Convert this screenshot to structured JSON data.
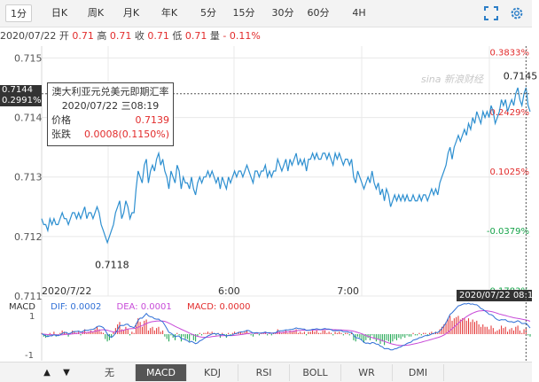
{
  "tabs": [
    "1分",
    "日K",
    "周K",
    "月K",
    "年K",
    "5分",
    "15分",
    "30分",
    "60分",
    "4H"
  ],
  "active_tab": 0,
  "quote": {
    "date": "2020/07/22",
    "open_label": "开",
    "open": "0.71",
    "high_label": "高",
    "high": "0.71",
    "close_label": "收",
    "close": "0.71",
    "low_label": "低",
    "low": "0.71",
    "volume_label": "量",
    "change": "- 0.11%"
  },
  "watermark": "sina 新浪财经",
  "tooltip": {
    "title": "澳大利亚元兑美元即期汇率",
    "time": "2020/07/22|三08:19",
    "price_label": "价格",
    "price": "0.7139",
    "change_label": "张跌",
    "change": "0.0008(0.1150%)"
  },
  "crosshair": {
    "price": "0.7144",
    "pct": "0.2991%",
    "time": "2020/07/22 08:19"
  },
  "macd": {
    "label": "MACD",
    "dif": "DIF: 0.0002",
    "dea": "DEA: 0.0001",
    "macd": "MACD: 0.0000"
  },
  "indicators": [
    "无",
    "MACD",
    "KDJ",
    "RSI",
    "BOLL",
    "WR",
    "DMI"
  ],
  "active_indicator": 1,
  "colors": {
    "line": "#2d8fd0",
    "up": "#e22c2c",
    "down": "#16a34a",
    "dif": "#2f6fd6",
    "dea": "#c74ad8"
  },
  "chart_data": {
    "type": "line",
    "ylim": [
      0.711,
      0.7152
    ],
    "y_ticks": [
      "0.715",
      "0.714",
      "0.713",
      "0.712",
      "0.711"
    ],
    "y_tick_values": [
      0.715,
      0.714,
      0.713,
      0.712,
      0.711
    ],
    "pct_ticks": [
      "0.3833%",
      "0.2429%",
      "0.1025%",
      "-0.0379%",
      "-0.1783%"
    ],
    "pct_tick_values": [
      0.7151,
      0.7141,
      0.7131,
      0.7121,
      0.7111
    ],
    "x_ticks": [
      "2020/7/22",
      "6:00",
      "7:00"
    ],
    "x_tick_index": [
      0,
      92,
      150
    ],
    "annotations": [
      {
        "text": "0.7145",
        "index": 231,
        "value": 0.71455
      },
      {
        "text": "0.7118",
        "index": 32,
        "value": 0.7118
      }
    ],
    "values": [
      0.7123,
      0.7122,
      0.7122,
      0.7121,
      0.7123,
      0.7122,
      0.7123,
      0.7122,
      0.7122,
      0.7123,
      0.7124,
      0.7123,
      0.7123,
      0.7122,
      0.7123,
      0.7124,
      0.7124,
      0.7123,
      0.7124,
      0.7123,
      0.7124,
      0.7125,
      0.7123,
      0.7124,
      0.7124,
      0.7123,
      0.7124,
      0.7125,
      0.7124,
      0.7122,
      0.7121,
      0.712,
      0.7119,
      0.712,
      0.7121,
      0.7122,
      0.7124,
      0.7125,
      0.7126,
      0.7123,
      0.7124,
      0.7126,
      0.7125,
      0.7123,
      0.7124,
      0.7124,
      0.7128,
      0.7131,
      0.713,
      0.7129,
      0.7132,
      0.7133,
      0.7129,
      0.7131,
      0.7132,
      0.7131,
      0.7133,
      0.7134,
      0.7132,
      0.7133,
      0.7131,
      0.713,
      0.7128,
      0.7131,
      0.713,
      0.7129,
      0.7132,
      0.7131,
      0.7128,
      0.713,
      0.7129,
      0.7129,
      0.7128,
      0.713,
      0.7128,
      0.7127,
      0.7129,
      0.713,
      0.7129,
      0.713,
      0.713,
      0.7131,
      0.713,
      0.7131,
      0.713,
      0.7129,
      0.713,
      0.7128,
      0.713,
      0.7129,
      0.7128,
      0.713,
      0.7129,
      0.713,
      0.7131,
      0.713,
      0.7131,
      0.7131,
      0.713,
      0.7131,
      0.7132,
      0.7131,
      0.713,
      0.7129,
      0.7131,
      0.7131,
      0.713,
      0.7131,
      0.7131,
      0.7132,
      0.713,
      0.7131,
      0.713,
      0.7131,
      0.7131,
      0.7133,
      0.7132,
      0.7131,
      0.7132,
      0.7133,
      0.7131,
      0.7133,
      0.7132,
      0.7133,
      0.7134,
      0.7132,
      0.7133,
      0.7132,
      0.7133,
      0.7131,
      0.7133,
      0.7133,
      0.7134,
      0.7133,
      0.7134,
      0.7133,
      0.7133,
      0.7134,
      0.7134,
      0.7133,
      0.7134,
      0.7133,
      0.7132,
      0.7134,
      0.7133,
      0.7134,
      0.7133,
      0.7132,
      0.7133,
      0.7133,
      0.7132,
      0.7133,
      0.713,
      0.7129,
      0.7131,
      0.713,
      0.7129,
      0.7128,
      0.7129,
      0.713,
      0.7129,
      0.7131,
      0.7129,
      0.7128,
      0.7129,
      0.7127,
      0.7128,
      0.7126,
      0.7128,
      0.7127,
      0.7125,
      0.7126,
      0.7127,
      0.7126,
      0.7127,
      0.7126,
      0.7127,
      0.7126,
      0.7127,
      0.7126,
      0.7126,
      0.7127,
      0.7126,
      0.7126,
      0.7127,
      0.7126,
      0.7127,
      0.7127,
      0.7126,
      0.7127,
      0.7128,
      0.7127,
      0.7128,
      0.7127,
      0.7129,
      0.713,
      0.7131,
      0.7132,
      0.7134,
      0.7135,
      0.7133,
      0.7135,
      0.7136,
      0.7137,
      0.7136,
      0.7137,
      0.7138,
      0.7137,
      0.7139,
      0.7138,
      0.714,
      0.7139,
      0.7141,
      0.714,
      0.7139,
      0.7141,
      0.714,
      0.7141,
      0.714,
      0.7142,
      0.7141,
      0.7139,
      0.714,
      0.7141,
      0.7143,
      0.7142,
      0.7143,
      0.7141,
      0.7142,
      0.7143,
      0.7142,
      0.7144,
      0.7145,
      0.7143,
      0.7142,
      0.7144,
      0.7145,
      0.7142,
      0.7141
    ],
    "macd_hist": [
      0.1,
      -0.2,
      -0.3,
      -0.2,
      0.1,
      -0.1,
      0.2,
      -0.2,
      -0.1,
      0.1,
      0.3,
      0.2,
      0.1,
      -0.2,
      0.1,
      0.3,
      0.2,
      0.1,
      0.2,
      -0.1,
      0.2,
      0.4,
      0.1,
      0.2,
      0.3,
      0.2,
      0.4,
      0.6,
      0.4,
      0.2,
      0.1,
      -0.4,
      -0.6,
      -0.5,
      -0.3,
      0.2,
      0.5,
      0.8,
      1.0,
      0.4,
      0.3,
      0.6,
      0.4,
      -0.1,
      0.2,
      0.1,
      0.9,
      1.3,
      1.0,
      0.6,
      1.1,
      1.2,
      0.3,
      0.5,
      0.6,
      0.3,
      0.5,
      0.6,
      0.2,
      0.3,
      -0.2,
      -0.4,
      -0.6,
      -0.1,
      -0.3,
      -0.5,
      0.1,
      -0.1,
      -0.6,
      -0.2,
      -0.4,
      -0.4,
      -0.6,
      -0.1,
      -0.5,
      -0.6,
      -0.2,
      0.1,
      -0.1,
      0.1,
      0.1,
      0.2,
      0.1,
      0.2,
      0.1,
      -0.1,
      0.1,
      -0.3,
      0.1,
      -0.1,
      -0.3,
      0.1,
      -0.1,
      0.1,
      0.2,
      0.1,
      0.2,
      0.2,
      0.1,
      0.2,
      0.3,
      0.1,
      -0.1,
      -0.2,
      0.1,
      0.1,
      -0.1,
      0.1,
      0.1,
      0.2,
      -0.1,
      0.1,
      -0.1,
      0.1,
      0.1,
      0.4,
      0.2,
      0.1,
      0.2,
      0.3,
      0.1,
      0.3,
      0.2,
      0.3,
      0.4,
      0.1,
      0.2,
      0.1,
      0.2,
      -0.1,
      0.2,
      0.2,
      0.3,
      0.2,
      0.3,
      0.1,
      0.1,
      0.3,
      0.3,
      0.1,
      0.2,
      0.1,
      -0.1,
      0.2,
      0.1,
      0.2,
      0.1,
      -0.1,
      0.1,
      0.1,
      -0.1,
      0.1,
      -0.5,
      -0.6,
      -0.2,
      -0.3,
      -0.5,
      -0.7,
      -0.5,
      -0.3,
      -0.5,
      -0.1,
      -0.4,
      -0.6,
      -0.4,
      -0.8,
      -0.6,
      -0.9,
      -0.5,
      -0.6,
      -0.8,
      -0.6,
      -0.4,
      -0.5,
      -0.3,
      -0.4,
      -0.2,
      -0.3,
      -0.1,
      -0.2,
      -0.2,
      0.1,
      -0.1,
      -0.1,
      0.1,
      -0.1,
      0.1,
      0.1,
      -0.1,
      0.1,
      0.2,
      0.1,
      0.2,
      0.1,
      0.4,
      0.6,
      0.8,
      1.0,
      1.3,
      1.5,
      1.1,
      1.3,
      1.4,
      1.5,
      1.2,
      1.3,
      1.3,
      1.1,
      1.3,
      1.0,
      1.2,
      1.0,
      1.1,
      0.8,
      0.6,
      0.8,
      0.6,
      0.6,
      0.4,
      0.7,
      0.5,
      0.2,
      0.3,
      0.4,
      0.7,
      0.5,
      0.6,
      0.2,
      0.4,
      0.5,
      0.3,
      0.6,
      0.7,
      0.3,
      0.1,
      0.4,
      0.5,
      -0.1,
      -0.2
    ],
    "macd_ylim": [
      -1.6,
      1.6
    ]
  }
}
